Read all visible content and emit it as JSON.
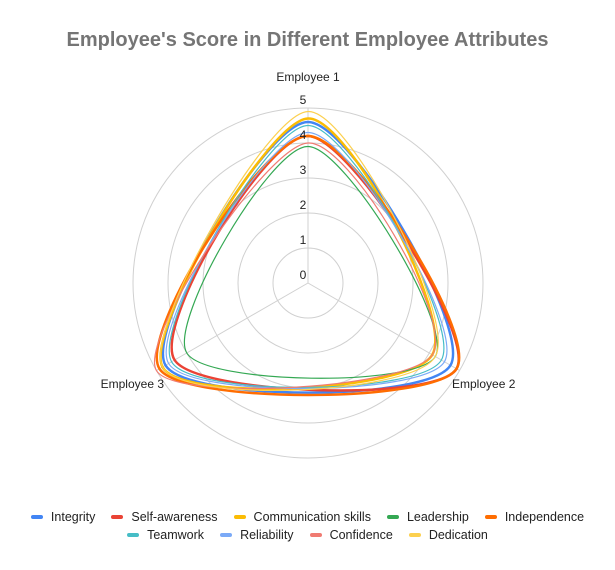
{
  "chart_data": {
    "type": "radar",
    "title": "Employee's Score in Different Employee Attributes",
    "categories": [
      "Employee 1",
      "Employee 2",
      "Employee 3"
    ],
    "radial_ticks": [
      "0",
      "1",
      "2",
      "3",
      "4",
      "5"
    ],
    "rlim": [
      0,
      5
    ],
    "grid": true,
    "legend_position": "bottom",
    "series": [
      {
        "name": "Integrity",
        "color": "#4285f4",
        "width": 2.5,
        "values": [
          4.6,
          4.7,
          4.7
        ]
      },
      {
        "name": "Self-awareness",
        "color": "#ea4335",
        "width": 2.5,
        "values": [
          4.2,
          4.9,
          4.4
        ]
      },
      {
        "name": "Communication skills",
        "color": "#fbbc04",
        "width": 2.5,
        "values": [
          4.7,
          4.1,
          4.8
        ]
      },
      {
        "name": "Leadership",
        "color": "#34a853",
        "width": 1.2,
        "values": [
          3.9,
          4.2,
          4.0
        ]
      },
      {
        "name": "Independence",
        "color": "#ff6d01",
        "width": 2.5,
        "values": [
          4.2,
          4.9,
          4.9
        ]
      },
      {
        "name": "Teamwork",
        "color": "#46bdc6",
        "width": 1.2,
        "values": [
          4.5,
          4.4,
          4.5
        ]
      },
      {
        "name": "Reliability",
        "color": "#7baaf7",
        "width": 1.2,
        "values": [
          4.3,
          4.5,
          4.6
        ]
      },
      {
        "name": "Confidence",
        "color": "#f07b72",
        "width": 1.2,
        "values": [
          4.0,
          4.1,
          5.0
        ]
      },
      {
        "name": "Dedication",
        "color": "#fcd04f",
        "width": 1.2,
        "values": [
          4.9,
          4.2,
          4.8
        ]
      }
    ]
  }
}
